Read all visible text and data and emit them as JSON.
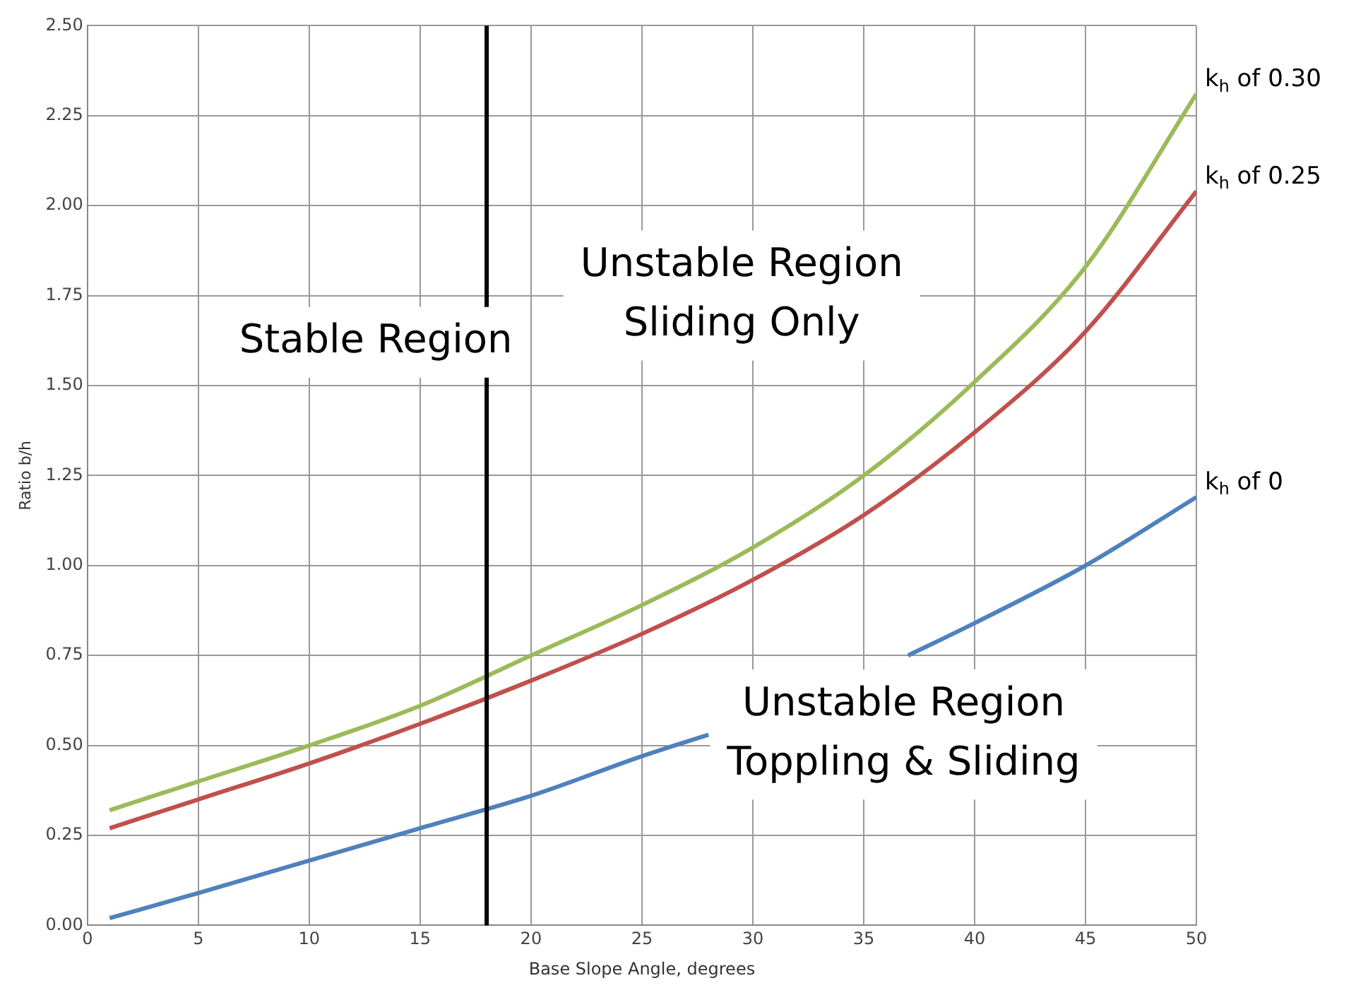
{
  "chart_data": {
    "type": "line",
    "xlabel": "Base Slope Angle, degrees",
    "ylabel": "Ratio b/h",
    "x": [
      1,
      5,
      10,
      15,
      20,
      25,
      30,
      35,
      40,
      45,
      50
    ],
    "series": [
      {
        "name": "k$_{h}$ of 0.30",
        "color": "#9bbb59",
        "values": [
          0.32,
          0.4,
          0.5,
          0.61,
          0.75,
          0.89,
          1.05,
          1.25,
          1.51,
          1.83,
          2.31
        ]
      },
      {
        "name": "k$_{h}$ of 0.25",
        "color": "#c0504d",
        "values": [
          0.27,
          0.35,
          0.45,
          0.56,
          0.68,
          0.81,
          0.96,
          1.14,
          1.37,
          1.65,
          2.04
        ]
      },
      {
        "name": "k$_{h}$ of 0",
        "color": "#4f81bd",
        "x": [
          1,
          5,
          10,
          15,
          20,
          25,
          28,
          30,
          35,
          37,
          40,
          45,
          50
        ],
        "values": [
          0.02,
          0.09,
          0.18,
          0.27,
          0.36,
          0.47,
          0.53,
          null,
          null,
          0.75,
          0.84,
          1.0,
          1.19
        ]
      }
    ],
    "xlim": [
      0,
      50
    ],
    "xticks": [
      0,
      5,
      10,
      15,
      20,
      25,
      30,
      35,
      40,
      45,
      50
    ],
    "ylim": [
      0,
      2.5
    ],
    "yticks": [
      {
        "value": 0,
        "label": "0.00"
      },
      {
        "value": 0.25,
        "label": "0.25"
      },
      {
        "value": 0.5,
        "label": "0.50"
      },
      {
        "value": 0.75,
        "label": "0.75"
      },
      {
        "value": 1,
        "label": "1.00"
      },
      {
        "value": 1.25,
        "label": "1.25"
      },
      {
        "value": 1.5,
        "label": "1.50"
      },
      {
        "value": 1.75,
        "label": "1.75"
      },
      {
        "value": 2,
        "label": "2.00"
      },
      {
        "value": 2.25,
        "label": "2.25"
      },
      {
        "value": 2.5,
        "label": "2.50"
      }
    ],
    "ref_lines": [
      {
        "axis": "x",
        "value": 18,
        "color": "#000000"
      }
    ],
    "annotations": [
      "Stable Region",
      "Unstable Region\nSliding Only",
      "Unstable Region\nToppling & Sliding"
    ],
    "grid": true,
    "legend": false,
    "marker": "none",
    "line_style": "solid"
  }
}
